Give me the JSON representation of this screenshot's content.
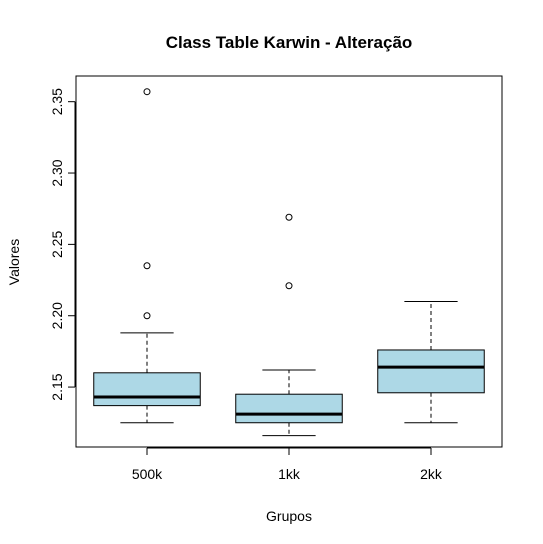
{
  "chart_data": {
    "type": "boxplot",
    "title": "Class Table Karwin - Alteração",
    "xlabel": "Grupos",
    "ylabel": "Valores",
    "categories": [
      "500k",
      "1kk",
      "2kk"
    ],
    "ylim": [
      2.108,
      2.368
    ],
    "yticks": [
      2.15,
      2.2,
      2.25,
      2.3,
      2.35
    ],
    "ytick_labels": [
      "2.15",
      "2.20",
      "2.25",
      "2.30",
      "2.35"
    ],
    "box_fill": "#add8e6",
    "boxes": [
      {
        "category": "500k",
        "whisker_low": 2.125,
        "q1": 2.137,
        "median": 2.143,
        "q3": 2.16,
        "whisker_high": 2.188,
        "outliers": [
          2.2,
          2.235,
          2.357
        ]
      },
      {
        "category": "1kk",
        "whisker_low": 2.116,
        "q1": 2.125,
        "median": 2.131,
        "q3": 2.145,
        "whisker_high": 2.162,
        "outliers": [
          2.221,
          2.269
        ]
      },
      {
        "category": "2kk",
        "whisker_low": 2.125,
        "q1": 2.146,
        "median": 2.164,
        "q3": 2.176,
        "whisker_high": 2.21,
        "outliers": []
      }
    ]
  }
}
